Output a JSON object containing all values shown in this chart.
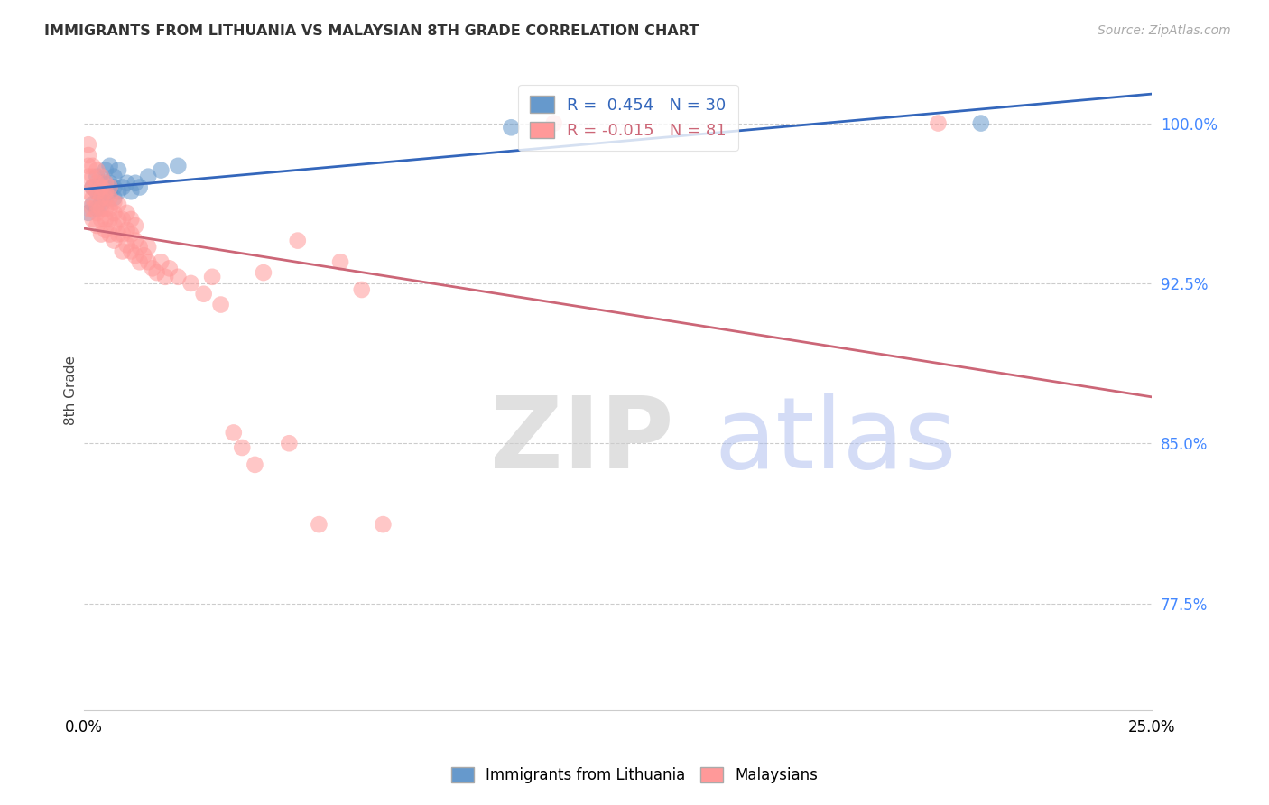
{
  "title": "IMMIGRANTS FROM LITHUANIA VS MALAYSIAN 8TH GRADE CORRELATION CHART",
  "source": "Source: ZipAtlas.com",
  "ylabel": "8th Grade",
  "ytick_labels": [
    "100.0%",
    "92.5%",
    "85.0%",
    "77.5%"
  ],
  "ytick_values": [
    1.0,
    0.925,
    0.85,
    0.775
  ],
  "xlim": [
    0.0,
    0.25
  ],
  "ylim": [
    0.725,
    1.025
  ],
  "legend_blue_r": "0.454",
  "legend_blue_n": "30",
  "legend_pink_r": "-0.015",
  "legend_pink_n": "81",
  "blue_color": "#6699CC",
  "pink_color": "#FF9999",
  "trendline_blue": "#3366BB",
  "trendline_pink": "#CC6677",
  "blue_points": [
    [
      0.001,
      0.958
    ],
    [
      0.002,
      0.962
    ],
    [
      0.002,
      0.97
    ],
    [
      0.003,
      0.96
    ],
    [
      0.003,
      0.968
    ],
    [
      0.003,
      0.975
    ],
    [
      0.004,
      0.962
    ],
    [
      0.004,
      0.968
    ],
    [
      0.004,
      0.972
    ],
    [
      0.005,
      0.965
    ],
    [
      0.005,
      0.97
    ],
    [
      0.005,
      0.978
    ],
    [
      0.006,
      0.968
    ],
    [
      0.006,
      0.972
    ],
    [
      0.006,
      0.98
    ],
    [
      0.007,
      0.965
    ],
    [
      0.007,
      0.97
    ],
    [
      0.007,
      0.975
    ],
    [
      0.008,
      0.968
    ],
    [
      0.008,
      0.978
    ],
    [
      0.009,
      0.97
    ],
    [
      0.01,
      0.972
    ],
    [
      0.011,
      0.968
    ],
    [
      0.012,
      0.972
    ],
    [
      0.013,
      0.97
    ],
    [
      0.015,
      0.975
    ],
    [
      0.018,
      0.978
    ],
    [
      0.022,
      0.98
    ],
    [
      0.1,
      0.998
    ],
    [
      0.21,
      1.0
    ]
  ],
  "pink_points": [
    [
      0.001,
      0.96
    ],
    [
      0.001,
      0.968
    ],
    [
      0.001,
      0.975
    ],
    [
      0.001,
      0.98
    ],
    [
      0.001,
      0.985
    ],
    [
      0.001,
      0.99
    ],
    [
      0.002,
      0.955
    ],
    [
      0.002,
      0.96
    ],
    [
      0.002,
      0.965
    ],
    [
      0.002,
      0.97
    ],
    [
      0.002,
      0.975
    ],
    [
      0.002,
      0.98
    ],
    [
      0.003,
      0.952
    ],
    [
      0.003,
      0.958
    ],
    [
      0.003,
      0.962
    ],
    [
      0.003,
      0.968
    ],
    [
      0.003,
      0.972
    ],
    [
      0.003,
      0.978
    ],
    [
      0.004,
      0.948
    ],
    [
      0.004,
      0.955
    ],
    [
      0.004,
      0.96
    ],
    [
      0.004,
      0.965
    ],
    [
      0.004,
      0.97
    ],
    [
      0.004,
      0.975
    ],
    [
      0.005,
      0.95
    ],
    [
      0.005,
      0.955
    ],
    [
      0.005,
      0.96
    ],
    [
      0.005,
      0.965
    ],
    [
      0.005,
      0.968
    ],
    [
      0.005,
      0.972
    ],
    [
      0.006,
      0.948
    ],
    [
      0.006,
      0.955
    ],
    [
      0.006,
      0.96
    ],
    [
      0.006,
      0.965
    ],
    [
      0.006,
      0.97
    ],
    [
      0.007,
      0.945
    ],
    [
      0.007,
      0.952
    ],
    [
      0.007,
      0.958
    ],
    [
      0.007,
      0.963
    ],
    [
      0.008,
      0.948
    ],
    [
      0.008,
      0.955
    ],
    [
      0.008,
      0.962
    ],
    [
      0.009,
      0.94
    ],
    [
      0.009,
      0.948
    ],
    [
      0.009,
      0.955
    ],
    [
      0.01,
      0.943
    ],
    [
      0.01,
      0.95
    ],
    [
      0.01,
      0.958
    ],
    [
      0.011,
      0.94
    ],
    [
      0.011,
      0.948
    ],
    [
      0.011,
      0.955
    ],
    [
      0.012,
      0.938
    ],
    [
      0.012,
      0.945
    ],
    [
      0.012,
      0.952
    ],
    [
      0.013,
      0.935
    ],
    [
      0.013,
      0.942
    ],
    [
      0.014,
      0.938
    ],
    [
      0.015,
      0.935
    ],
    [
      0.015,
      0.942
    ],
    [
      0.016,
      0.932
    ],
    [
      0.017,
      0.93
    ],
    [
      0.018,
      0.935
    ],
    [
      0.019,
      0.928
    ],
    [
      0.02,
      0.932
    ],
    [
      0.022,
      0.928
    ],
    [
      0.025,
      0.925
    ],
    [
      0.028,
      0.92
    ],
    [
      0.03,
      0.928
    ],
    [
      0.032,
      0.915
    ],
    [
      0.035,
      0.855
    ],
    [
      0.037,
      0.848
    ],
    [
      0.04,
      0.84
    ],
    [
      0.042,
      0.93
    ],
    [
      0.048,
      0.85
    ],
    [
      0.05,
      0.945
    ],
    [
      0.055,
      0.812
    ],
    [
      0.06,
      0.935
    ],
    [
      0.065,
      0.922
    ],
    [
      0.07,
      0.812
    ],
    [
      0.11,
      1.0
    ],
    [
      0.2,
      1.0
    ]
  ]
}
